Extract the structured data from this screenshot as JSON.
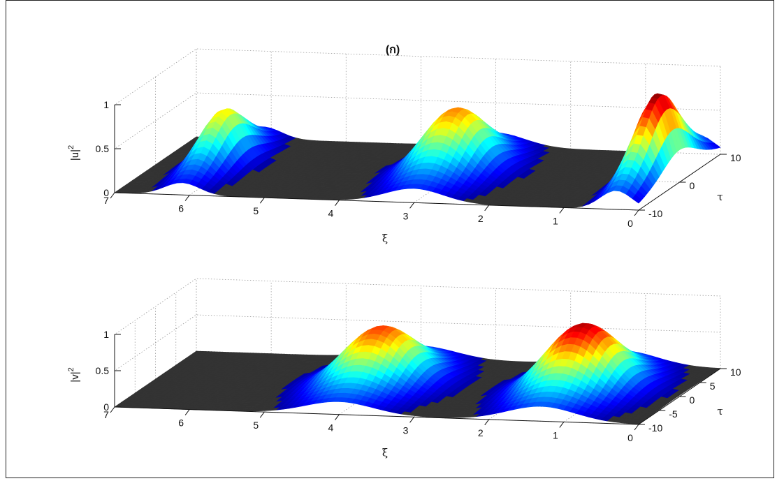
{
  "figure": {
    "title": "(ก)"
  },
  "chart_data": [
    {
      "type": "surface",
      "title": "(ก)",
      "xlabel": "ξ",
      "ylabel": "τ",
      "zlabel": "|u|²",
      "z_label_main": "|u|",
      "z_label_sup": "2",
      "xlim": [
        0,
        7
      ],
      "ylim": [
        -10,
        10
      ],
      "zlim": [
        0,
        1
      ],
      "xticks": [
        "0",
        "1",
        "2",
        "3",
        "4",
        "5",
        "6",
        "7"
      ],
      "yticks": [
        "-10",
        "0",
        "10"
      ],
      "zticks": [
        "0",
        "0.5",
        "1"
      ],
      "colormap": "jet",
      "background": "#333333",
      "peaks": [
        {
          "xi": 6.1,
          "height": 0.65,
          "width": 0.33
        },
        {
          "xi": 3.0,
          "height": 0.75,
          "width": 0.55
        },
        {
          "xi": 0.3,
          "height": 1.0,
          "width": 0.3
        }
      ]
    },
    {
      "type": "surface",
      "title": "",
      "xlabel": "ξ",
      "ylabel": "τ",
      "zlabel": "|v|²",
      "z_label_main": "|v|",
      "z_label_sup": "2",
      "xlim": [
        0,
        7
      ],
      "ylim": [
        -10,
        10
      ],
      "zlim": [
        0,
        1
      ],
      "xticks": [
        "0",
        "1",
        "2",
        "3",
        "4",
        "5",
        "6",
        "7"
      ],
      "yticks": [
        "-10",
        "-5",
        "0",
        "5",
        "10"
      ],
      "zticks": [
        "0",
        "0.5",
        "1"
      ],
      "colormap": "jet",
      "background": "#333333",
      "peaks": [
        {
          "xi": 4.0,
          "height": 0.82,
          "width": 0.65
        },
        {
          "xi": 1.3,
          "height": 0.95,
          "width": 0.65
        }
      ]
    }
  ]
}
